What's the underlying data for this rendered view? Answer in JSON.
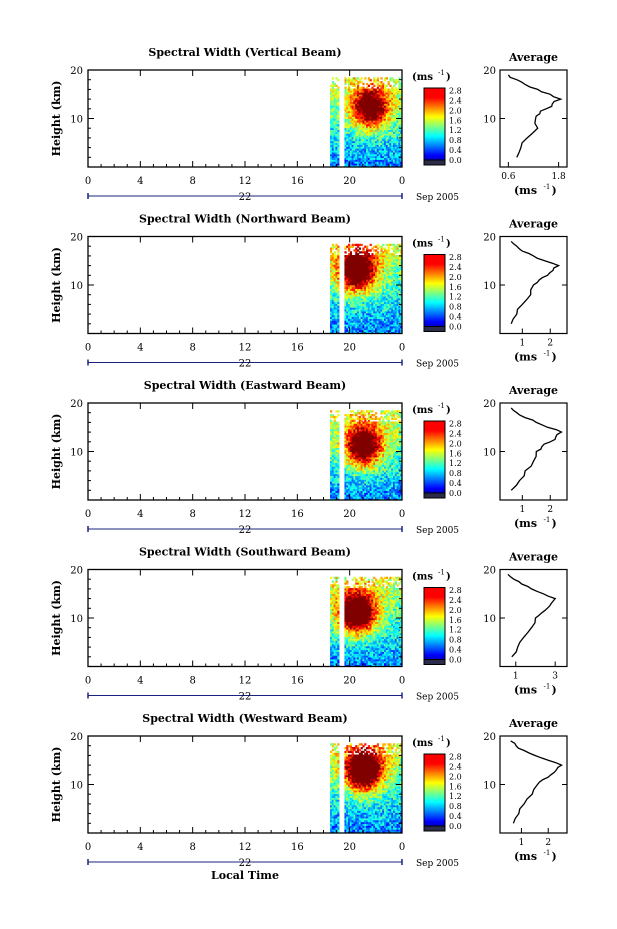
{
  "figure": {
    "bottom_xlabel": "Local Time",
    "colorbar_unit": "(ms",
    "colorbar_unit_sup": "-1",
    "colorbar_ticks": [
      "2.8",
      "2.4",
      "2.0",
      "1.6",
      "1.2",
      "0.8",
      "0.4",
      "0.0"
    ],
    "ylabel": "Height (km)",
    "y_ticks": [
      "20",
      "10"
    ],
    "x_ticks": [
      "0",
      "4",
      "8",
      "12",
      "16",
      "20",
      "0"
    ],
    "date_day": "22",
    "date_month_year": "Sep 2005",
    "avg_title": "Average",
    "avg_xlabel": "(ms",
    "avg_xlabel_sup": "-1"
  },
  "chart_data": [
    {
      "type": "heatmap",
      "title": "Spectral Width (Vertical Beam)",
      "xlabel": "",
      "ylabel": "Height (km)",
      "xlim": [
        0,
        24
      ],
      "ylim": [
        0,
        20
      ],
      "data_start_hour": 18.5,
      "gap_hour": 19.1,
      "height_top_km": 18.5,
      "peak": {
        "hour": 21.5,
        "height_km": 12,
        "value": 2.2
      },
      "average_profile": {
        "title": "Average",
        "xlabel": "(ms-1)",
        "x_ticks": [
          "0.6",
          "1.8"
        ],
        "xlim": [
          0.4,
          2.0
        ],
        "height_km": [
          2,
          4,
          6,
          8,
          10,
          11,
          12,
          13,
          14,
          15,
          16,
          17,
          18,
          19
        ],
        "values": [
          0.8,
          0.9,
          1.05,
          1.3,
          1.25,
          1.35,
          1.5,
          1.65,
          1.85,
          1.6,
          1.3,
          1.0,
          0.8,
          0.6
        ]
      }
    },
    {
      "type": "heatmap",
      "title": "Spectral Width (Northward Beam)",
      "xlabel": "",
      "ylabel": "Height (km)",
      "xlim": [
        0,
        24
      ],
      "ylim": [
        0,
        20
      ],
      "data_start_hour": 18.5,
      "gap_hour": 19.1,
      "height_top_km": 18.5,
      "peak": {
        "hour": 20.5,
        "height_km": 13,
        "value": 2.6
      },
      "average_profile": {
        "title": "Average",
        "xlabel": "(ms-1)",
        "x_ticks": [
          "1",
          "2"
        ],
        "xlim": [
          0.2,
          2.6
        ],
        "height_km": [
          2,
          4,
          6,
          8,
          10,
          11,
          12,
          13,
          14,
          15,
          16,
          17,
          18,
          19
        ],
        "values": [
          0.6,
          0.8,
          1.0,
          1.3,
          1.4,
          1.6,
          1.9,
          2.1,
          2.3,
          1.8,
          1.4,
          1.0,
          0.8,
          0.6
        ]
      }
    },
    {
      "type": "heatmap",
      "title": "Spectral Width (Eastward Beam)",
      "xlabel": "",
      "ylabel": "Height (km)",
      "xlim": [
        0,
        24
      ],
      "ylim": [
        0,
        20
      ],
      "data_start_hour": 18.5,
      "gap_hour": 19.1,
      "height_top_km": 18.5,
      "peak": {
        "hour": 21.0,
        "height_km": 11,
        "value": 2.4
      },
      "average_profile": {
        "title": "Average",
        "xlabel": "(ms-1)",
        "x_ticks": [
          "1",
          "2"
        ],
        "xlim": [
          0.2,
          2.6
        ],
        "height_km": [
          2,
          4,
          6,
          8,
          10,
          11,
          12,
          13,
          14,
          15,
          16,
          17,
          18,
          19
        ],
        "values": [
          0.6,
          0.9,
          1.1,
          1.4,
          1.5,
          1.7,
          2.0,
          2.2,
          2.4,
          1.9,
          1.5,
          1.1,
          0.8,
          0.6
        ]
      }
    },
    {
      "type": "heatmap",
      "title": "Spectral Width (Southward Beam)",
      "xlabel": "",
      "ylabel": "Height (km)",
      "xlim": [
        0,
        24
      ],
      "ylim": [
        0,
        20
      ],
      "data_start_hour": 18.5,
      "gap_hour": 19.1,
      "height_top_km": 18.5,
      "peak": {
        "hour": 20.5,
        "height_km": 11,
        "value": 2.8
      },
      "average_profile": {
        "title": "Average",
        "xlabel": "(ms-1)",
        "x_ticks": [
          "1",
          "3"
        ],
        "xlim": [
          0.2,
          3.6
        ],
        "height_km": [
          2,
          4,
          6,
          8,
          10,
          11,
          12,
          13,
          14,
          15,
          16,
          17,
          18,
          19
        ],
        "values": [
          0.8,
          1.1,
          1.4,
          1.8,
          2.0,
          2.3,
          2.6,
          2.8,
          3.0,
          2.4,
          1.8,
          1.3,
          0.9,
          0.6
        ]
      }
    },
    {
      "type": "heatmap",
      "title": "Spectral Width (Westward Beam)",
      "xlabel": "Local Time",
      "ylabel": "Height (km)",
      "xlim": [
        0,
        24
      ],
      "ylim": [
        0,
        20
      ],
      "data_start_hour": 18.5,
      "gap_hour": 19.1,
      "height_top_km": 18.5,
      "peak": {
        "hour": 21.0,
        "height_km": 13,
        "value": 2.8
      },
      "average_profile": {
        "title": "Average",
        "xlabel": "(ms-1)",
        "x_ticks": [
          "1",
          "2"
        ],
        "xlim": [
          0.2,
          2.7
        ],
        "height_km": [
          2,
          4,
          6,
          8,
          10,
          11,
          12,
          13,
          14,
          15,
          16,
          17,
          18,
          19
        ],
        "values": [
          0.7,
          0.9,
          1.1,
          1.4,
          1.6,
          1.8,
          2.1,
          2.3,
          2.5,
          2.0,
          1.5,
          1.1,
          0.8,
          0.6
        ]
      }
    }
  ]
}
